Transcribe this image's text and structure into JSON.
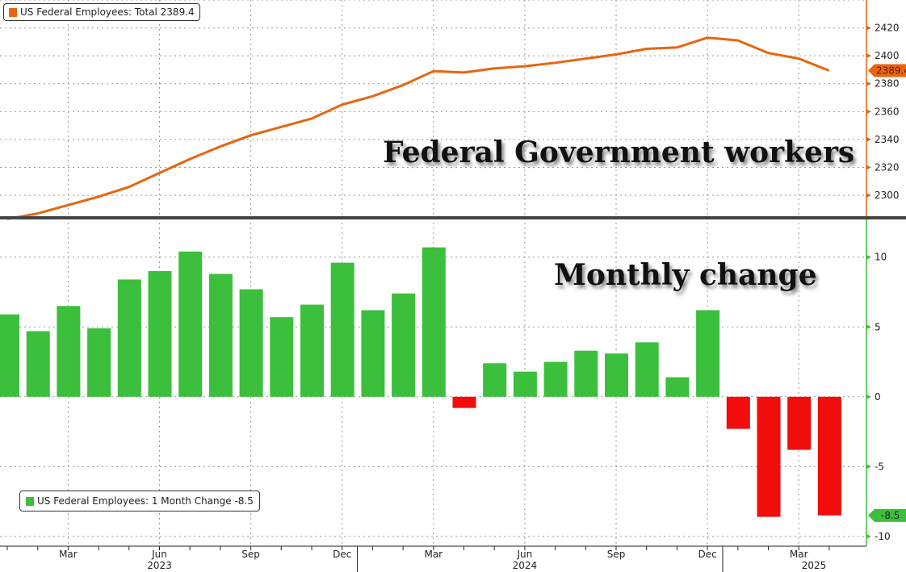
{
  "chart_data": [
    {
      "type": "line",
      "title": "Federal Government workers",
      "legend": "US Federal Employees: Total 2389.4",
      "last_value_label": "2389.4",
      "color": "#e8650f",
      "x": [
        "Jan 2023",
        "Feb 2023",
        "Mar 2023",
        "Apr 2023",
        "May 2023",
        "Jun 2023",
        "Jul 2023",
        "Aug 2023",
        "Sep 2023",
        "Oct 2023",
        "Nov 2023",
        "Dec 2023",
        "Jan 2024",
        "Feb 2024",
        "Mar 2024",
        "Apr 2024",
        "May 2024",
        "Jun 2024",
        "Jul 2024",
        "Aug 2024",
        "Sep 2024",
        "Oct 2024",
        "Nov 2024",
        "Dec 2024",
        "Jan 2025",
        "Feb 2025",
        "Mar 2025",
        "Apr 2025"
      ],
      "values": [
        2283,
        2287,
        2293,
        2299,
        2306,
        2316,
        2326,
        2335,
        2343,
        2349,
        2355,
        2365,
        2371,
        2379,
        2389,
        2388,
        2391,
        2392.5,
        2395,
        2398,
        2401,
        2405,
        2406,
        2413,
        2411,
        2402,
        2398,
        2389.4
      ],
      "yticks": [
        2300,
        2320,
        2340,
        2360,
        2380,
        2400,
        2420
      ],
      "ylim": [
        2285,
        2440
      ],
      "legend_position": "top-left"
    },
    {
      "type": "bar",
      "title": "Monthly change",
      "legend": "US Federal Employees: 1 Month Change -8.5",
      "last_value_label": "-8.5",
      "pos_color": "#3cbf3c",
      "neg_color": "#f20d0d",
      "values": [
        5.9,
        4.7,
        6.5,
        4.9,
        8.4,
        9.0,
        10.4,
        8.8,
        7.7,
        5.7,
        6.6,
        9.6,
        6.2,
        7.4,
        10.7,
        -0.8,
        2.4,
        1.8,
        2.5,
        3.3,
        3.1,
        3.9,
        1.4,
        6.2,
        -2.3,
        -8.6,
        -3.8,
        -8.5
      ],
      "yticks": [
        -10,
        -5,
        0,
        5,
        10
      ],
      "ylim": [
        -10.7,
        12.7
      ],
      "legend_position": "bottom-left"
    }
  ],
  "x_axis": {
    "month_labels": [
      {
        "label": "Mar",
        "i": 2
      },
      {
        "label": "Jun",
        "i": 5
      },
      {
        "label": "Sep",
        "i": 8
      },
      {
        "label": "Dec",
        "i": 11
      },
      {
        "label": "Mar",
        "i": 14
      },
      {
        "label": "Jun",
        "i": 17
      },
      {
        "label": "Sep",
        "i": 20
      },
      {
        "label": "Dec",
        "i": 23
      },
      {
        "label": "Mar",
        "i": 26
      }
    ],
    "year_labels": [
      {
        "label": "2023",
        "i": 5
      },
      {
        "label": "2024",
        "i": 17
      },
      {
        "label": "2025",
        "i": 26.5
      }
    ]
  }
}
